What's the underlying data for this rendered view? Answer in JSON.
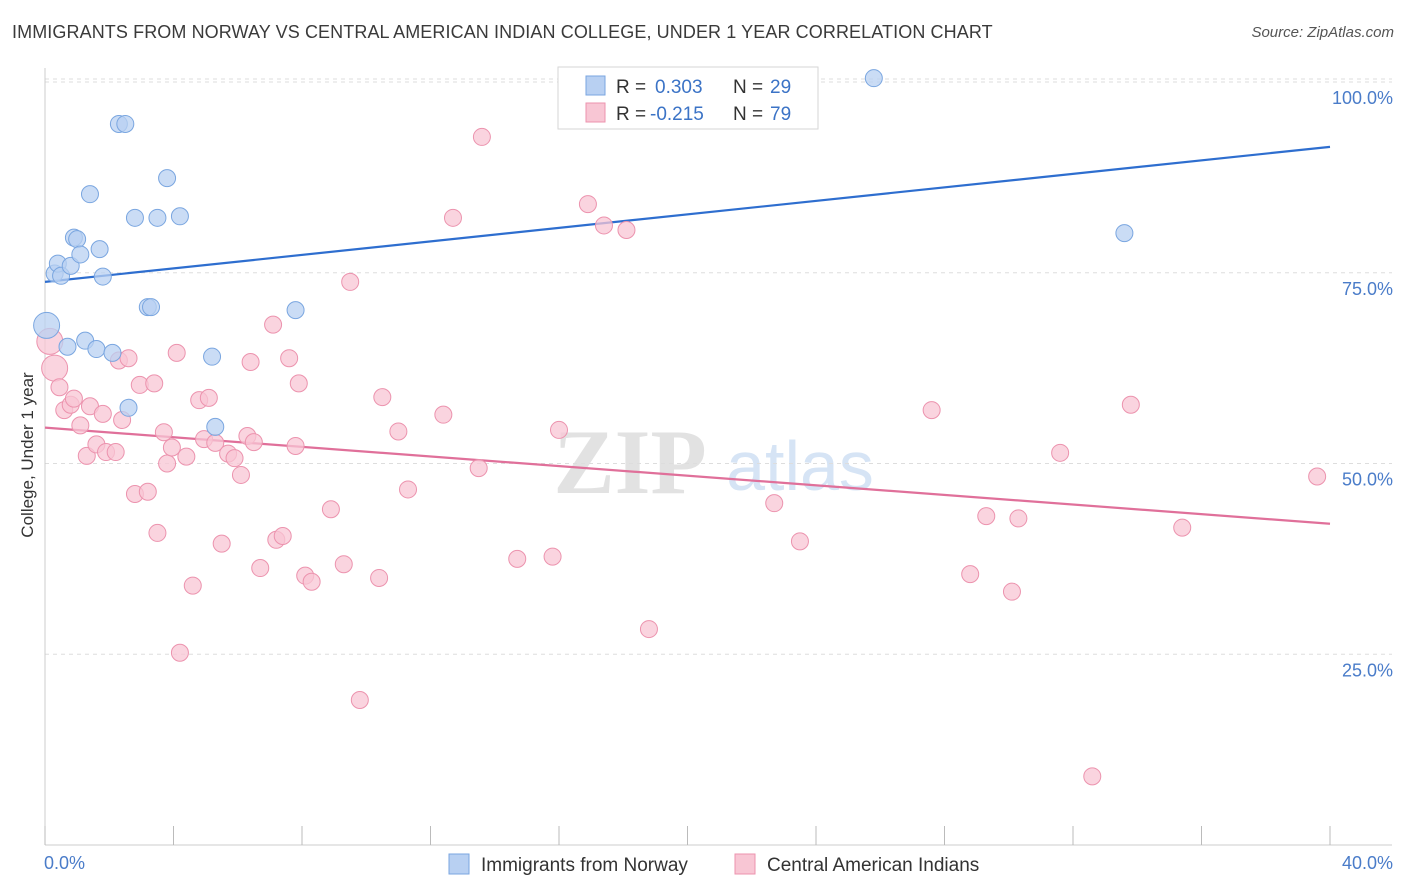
{
  "title": "IMMIGRANTS FROM NORWAY VS CENTRAL AMERICAN INDIAN COLLEGE, UNDER 1 YEAR CORRELATION CHART",
  "source": "Source: ZipAtlas.com",
  "watermark": {
    "zip": "ZIP",
    "atlas": "atlas"
  },
  "colors": {
    "blue_fill": "#b8d0f2",
    "blue_stroke": "#7aa6e0",
    "blue_line": "#2e6ecf",
    "pink_fill": "#f8c6d4",
    "pink_stroke": "#ec93ae",
    "pink_line": "#e0709a",
    "tick_text": "#4a7cc9",
    "grid": "#dddddd"
  },
  "legend": {
    "rows": [
      {
        "r_label": "R =",
        "r_value": "0.303",
        "n_label": "N =",
        "n_value": "29"
      },
      {
        "r_label": "R =",
        "r_value": "-0.215",
        "n_label": "N =",
        "n_value": "79"
      }
    ]
  },
  "chart_data": {
    "type": "scatter",
    "xlabel": "",
    "ylabel": "College, Under 1 year",
    "xlim": [
      0,
      40
    ],
    "ylim": [
      0,
      105
    ],
    "x_tick_labels": {
      "left": "0.0%",
      "right": "40.0%"
    },
    "y_tick_labels": [
      "100.0%",
      "75.0%",
      "50.0%",
      "25.0%"
    ],
    "y_ticks": [
      100,
      75,
      50,
      25
    ],
    "series": [
      {
        "name": "Immigrants from Norway",
        "color": "blue",
        "trend": {
          "x": [
            0,
            40
          ],
          "y": [
            73.8,
            91.5
          ]
        },
        "points": [
          [
            0.05,
            68.1
          ],
          [
            0.3,
            74.9
          ],
          [
            0.4,
            76.2
          ],
          [
            0.5,
            74.6
          ],
          [
            0.7,
            65.3
          ],
          [
            0.8,
            75.9
          ],
          [
            0.9,
            79.6
          ],
          [
            1.0,
            79.4
          ],
          [
            1.1,
            77.4
          ],
          [
            1.25,
            66.1
          ],
          [
            1.4,
            85.3
          ],
          [
            1.6,
            65.0
          ],
          [
            1.7,
            78.1
          ],
          [
            1.8,
            74.5
          ],
          [
            2.1,
            64.5
          ],
          [
            2.3,
            94.5
          ],
          [
            2.5,
            94.5
          ],
          [
            2.6,
            57.3
          ],
          [
            2.8,
            82.2
          ],
          [
            3.2,
            70.5
          ],
          [
            3.3,
            70.5
          ],
          [
            3.5,
            82.2
          ],
          [
            3.8,
            87.4
          ],
          [
            4.2,
            82.4
          ],
          [
            5.2,
            64.0
          ],
          [
            5.3,
            54.8
          ],
          [
            7.8,
            70.1
          ],
          [
            25.8,
            100.5
          ],
          [
            33.6,
            80.2
          ]
        ]
      },
      {
        "name": "Central American Indians",
        "color": "pink",
        "trend": {
          "x": [
            0,
            40
          ],
          "y": [
            54.7,
            42.1
          ]
        },
        "points": [
          [
            0.15,
            66.0
          ],
          [
            0.3,
            62.5
          ],
          [
            0.45,
            60.0
          ],
          [
            0.6,
            57.0
          ],
          [
            0.8,
            57.7
          ],
          [
            0.9,
            58.5
          ],
          [
            1.1,
            55.0
          ],
          [
            1.3,
            51.0
          ],
          [
            1.4,
            57.5
          ],
          [
            1.6,
            52.5
          ],
          [
            1.8,
            56.5
          ],
          [
            1.9,
            51.5
          ],
          [
            2.2,
            51.5
          ],
          [
            2.3,
            63.5
          ],
          [
            2.4,
            55.7
          ],
          [
            2.6,
            63.8
          ],
          [
            2.8,
            46.0
          ],
          [
            2.95,
            60.3
          ],
          [
            3.2,
            46.3
          ],
          [
            3.4,
            60.5
          ],
          [
            3.5,
            40.9
          ],
          [
            3.7,
            54.1
          ],
          [
            3.8,
            50.0
          ],
          [
            3.95,
            52.1
          ],
          [
            4.1,
            64.5
          ],
          [
            4.2,
            25.2
          ],
          [
            4.4,
            50.9
          ],
          [
            4.6,
            34.0
          ],
          [
            4.8,
            58.3
          ],
          [
            4.95,
            53.2
          ],
          [
            5.1,
            58.6
          ],
          [
            5.3,
            52.7
          ],
          [
            5.5,
            39.5
          ],
          [
            5.7,
            51.3
          ],
          [
            5.9,
            50.7
          ],
          [
            6.1,
            48.5
          ],
          [
            6.3,
            53.6
          ],
          [
            6.4,
            63.3
          ],
          [
            6.5,
            52.8
          ],
          [
            6.7,
            36.3
          ],
          [
            7.1,
            68.2
          ],
          [
            7.2,
            40.0
          ],
          [
            7.4,
            40.5
          ],
          [
            7.6,
            63.8
          ],
          [
            7.8,
            52.3
          ],
          [
            7.9,
            60.5
          ],
          [
            8.1,
            35.3
          ],
          [
            8.3,
            34.5
          ],
          [
            8.9,
            44.0
          ],
          [
            9.3,
            36.8
          ],
          [
            9.5,
            73.8
          ],
          [
            9.8,
            19.0
          ],
          [
            10.4,
            35.0
          ],
          [
            10.5,
            58.7
          ],
          [
            11.0,
            54.2
          ],
          [
            11.3,
            46.6
          ],
          [
            12.4,
            56.4
          ],
          [
            12.7,
            82.2
          ],
          [
            13.5,
            49.4
          ],
          [
            13.6,
            92.8
          ],
          [
            14.7,
            37.5
          ],
          [
            15.8,
            37.8
          ],
          [
            16.0,
            54.4
          ],
          [
            16.9,
            84.0
          ],
          [
            17.4,
            81.2
          ],
          [
            18.1,
            80.6
          ],
          [
            18.8,
            28.3
          ],
          [
            22.7,
            44.8
          ],
          [
            23.5,
            39.8
          ],
          [
            27.6,
            57.0
          ],
          [
            28.8,
            35.5
          ],
          [
            29.3,
            43.1
          ],
          [
            30.1,
            33.2
          ],
          [
            30.3,
            42.8
          ],
          [
            31.6,
            51.4
          ],
          [
            32.6,
            9.0
          ],
          [
            33.8,
            57.7
          ],
          [
            35.4,
            41.6
          ],
          [
            39.6,
            48.3
          ]
        ]
      }
    ]
  },
  "bottom_legend": {
    "items": [
      {
        "label": "Immigrants from Norway"
      },
      {
        "label": "Central American Indians"
      }
    ]
  }
}
